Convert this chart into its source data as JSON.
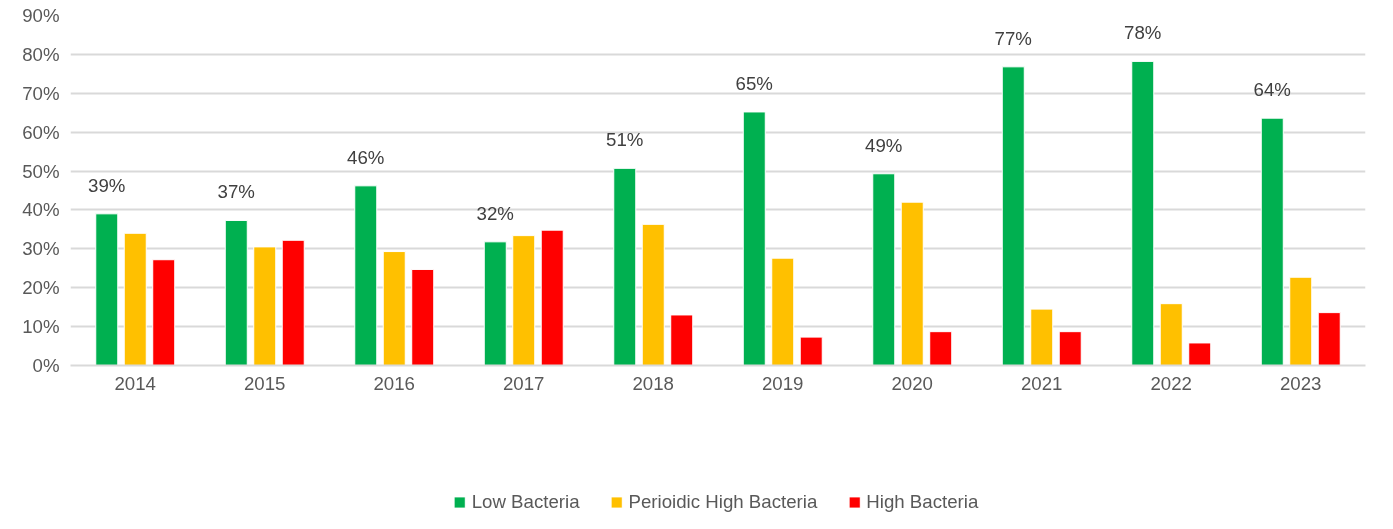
{
  "chart_data": {
    "type": "bar",
    "categories": [
      "2014",
      "2015",
      "2016",
      "2017",
      "2018",
      "2019",
      "2020",
      "2021",
      "2022",
      "2023"
    ],
    "series": [
      {
        "name": "Low Bacteria",
        "color": "#00b050",
        "values": [
          39.0,
          37.3,
          46.2,
          31.8,
          50.7,
          65.2,
          49.3,
          76.8,
          78.2,
          63.6
        ],
        "value_labels": [
          "39%",
          "37%",
          "46%",
          "32%",
          "51%",
          "65%",
          "49%",
          "77%",
          "78%",
          "64%"
        ]
      },
      {
        "name": "Perioidic High Bacteria",
        "color": "#ffc000",
        "values": [
          34.0,
          30.5,
          29.3,
          33.4,
          36.3,
          27.6,
          42.0,
          14.5,
          15.9,
          22.7
        ]
      },
      {
        "name": "High Bacteria",
        "color": "#ff0000",
        "values": [
          27.2,
          32.2,
          24.7,
          34.8,
          13.0,
          7.3,
          8.7,
          8.7,
          5.8,
          13.6
        ]
      }
    ],
    "ylim": [
      0,
      90
    ],
    "yticks": [
      {
        "value": 0,
        "label": "0%"
      },
      {
        "value": 10,
        "label": "10%"
      },
      {
        "value": 20,
        "label": "20%"
      },
      {
        "value": 30,
        "label": "30%"
      },
      {
        "value": 40,
        "label": "40%"
      },
      {
        "value": 50,
        "label": "50%"
      },
      {
        "value": 60,
        "label": "60%"
      },
      {
        "value": 70,
        "label": "70%"
      },
      {
        "value": 80,
        "label": "80%"
      },
      {
        "value": 90,
        "label": "90%"
      }
    ],
    "grid": "y",
    "legend": "bottom"
  }
}
